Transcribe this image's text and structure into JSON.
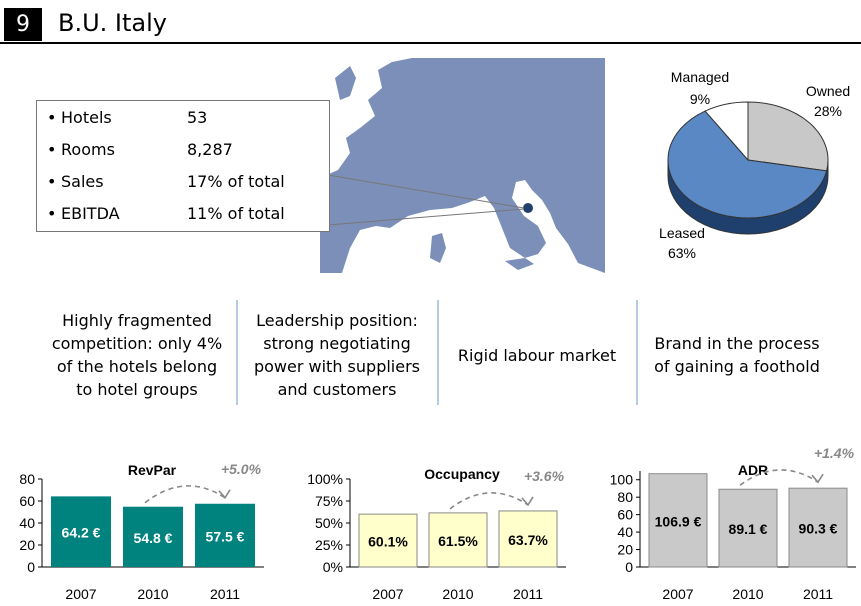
{
  "header": {
    "section_number": "9",
    "title": "B.U. Italy"
  },
  "stats": [
    {
      "bullet": "•",
      "label": "Hotels",
      "value": "53"
    },
    {
      "bullet": "•",
      "label": "Rooms",
      "value": "8,287"
    },
    {
      "bullet": "•",
      "label": "Sales",
      "value": "17% of total"
    },
    {
      "bullet": "•",
      "label": "EBITDA",
      "value": "11% of total"
    }
  ],
  "key_points": [
    "Highly fragmented competition: only 4% of the hotels belong to hotel groups",
    "Leadership position: strong negotiating power with suppliers and customers",
    "Rigid labour market",
    "Brand in the process of gaining a foothold"
  ],
  "colors": {
    "map_fill": "#7b8fb8",
    "pie_owned": "#c8c8c8",
    "pie_leased": "#5a88c4",
    "pie_leased_side": "#1f3f6c",
    "pie_managed": "#ffffff",
    "revpar_bar": "#00827f",
    "occupancy_bar": "#ffffcc",
    "adr_bar": "#c9c9c9",
    "growth_label": "#888888"
  },
  "chart_data": [
    {
      "type": "pie",
      "labels": [
        "Owned",
        "Leased",
        "Managed"
      ],
      "values": [
        28,
        63,
        9
      ],
      "value_labels": [
        "28%",
        "63%",
        "9%"
      ]
    },
    {
      "type": "bar",
      "title": "RevPar",
      "categories": [
        "2007",
        "2010",
        "2011"
      ],
      "values": [
        64.2,
        54.8,
        57.5
      ],
      "value_labels": [
        "64.2 €",
        "54.8 €",
        "57.5 €"
      ],
      "ylim": [
        0,
        80
      ],
      "yticks": [
        "0",
        "20",
        "40",
        "60",
        "80"
      ],
      "annotation": "+5.0%"
    },
    {
      "type": "bar",
      "title": "Occupancy",
      "categories": [
        "2007",
        "2010",
        "2011"
      ],
      "values": [
        60.1,
        61.5,
        63.7
      ],
      "value_labels": [
        "60.1%",
        "61.5%",
        "63.7%"
      ],
      "ylim": [
        0,
        100
      ],
      "yticks": [
        "0%",
        "25%",
        "50%",
        "75%",
        "100%"
      ],
      "annotation": "+3.6%"
    },
    {
      "type": "bar",
      "title": "ADR",
      "categories": [
        "2007",
        "2010",
        "2011"
      ],
      "values": [
        106.9,
        89.1,
        90.3
      ],
      "value_labels": [
        "106.9 €",
        "89.1 €",
        "90.3 €"
      ],
      "ylim": [
        0,
        110
      ],
      "yticks": [
        "0",
        "20",
        "40",
        "60",
        "80",
        "100"
      ],
      "annotation": "+1.4%"
    }
  ]
}
